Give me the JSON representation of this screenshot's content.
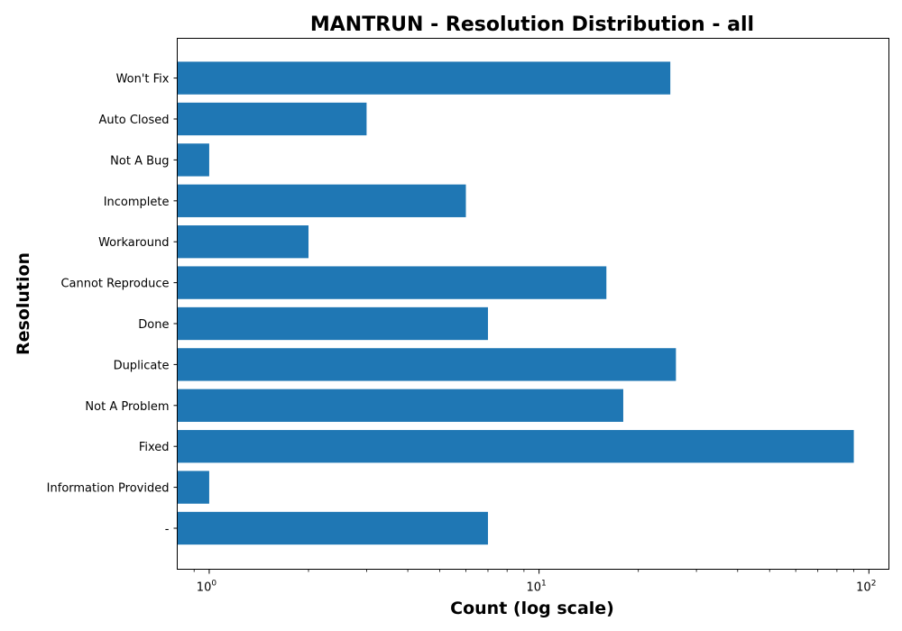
{
  "chart_data": {
    "type": "bar",
    "orientation": "horizontal",
    "title": "MANTRUN - Resolution Distribution - all",
    "xlabel": "Count (log scale)",
    "ylabel": "Resolution",
    "xscale": "log",
    "xlim": [
      0.8,
      115
    ],
    "x_ticks": [
      {
        "value": 1,
        "base": "10",
        "exp": "0"
      },
      {
        "value": 10,
        "base": "10",
        "exp": "1"
      },
      {
        "value": 100,
        "base": "10",
        "exp": "2"
      }
    ],
    "categories": [
      "-",
      "Information Provided",
      "Fixed",
      "Not A Problem",
      "Duplicate",
      "Done",
      "Cannot Reproduce",
      "Workaround",
      "Incomplete",
      "Not A Bug",
      "Auto Closed",
      "Won't Fix"
    ],
    "values": [
      7,
      1,
      90,
      18,
      26,
      7,
      16,
      2,
      6,
      1,
      3,
      25
    ],
    "bar_color": "#1f77b4",
    "grid": false,
    "legend": "none"
  }
}
